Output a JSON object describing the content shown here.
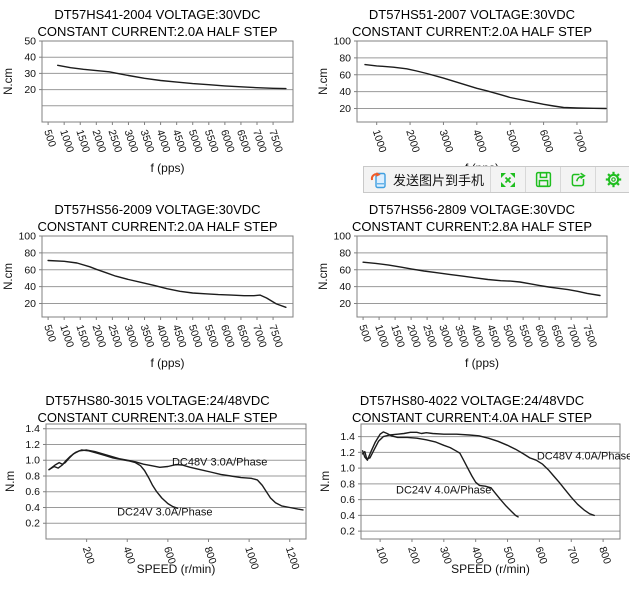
{
  "page": {
    "background": "#ffffff"
  },
  "toolbar": {
    "send_label": "发送图片到手机",
    "buttons": [
      {
        "name": "send-to-phone",
        "icon": "phone-with-arrow"
      },
      {
        "name": "fullscreen",
        "icon": "expand-arrows"
      },
      {
        "name": "save",
        "icon": "floppy-disk"
      },
      {
        "name": "share",
        "icon": "share-arrow"
      },
      {
        "name": "settings",
        "icon": "gear"
      }
    ],
    "icon_color": "#1fbe1f",
    "phone_blue": "#3f9fe0",
    "phone_fill": "#dcefff",
    "arrow_red": "#f05a28",
    "background": "#f3f3f3",
    "border": "#c9c9c9"
  },
  "chart_defaults": {
    "curve_color": "#1c1c1c",
    "grid_color": "#9a9a9a",
    "border_color": "#808080",
    "text_color": "#111111"
  },
  "chart_data": [
    {
      "type": "line",
      "title_line1": "DT57HS41-2004 VOLTAGE:30VDC",
      "title_line2": "CONSTANT CURRENT:2.0A HALF STEP",
      "xlabel": "f (pps)",
      "ylabel": "N.cm",
      "xticks": [
        "500",
        "1000",
        "1500",
        "2000",
        "2500",
        "3000",
        "3500",
        "4000",
        "4500",
        "5000",
        "5500",
        "6000",
        "6500",
        "7000",
        "7500"
      ],
      "yticks": [
        "20",
        "30",
        "40",
        "50"
      ],
      "extra_gridlines": [
        10
      ],
      "xlim": [
        310,
        8120
      ],
      "ylim": [
        0,
        50
      ],
      "series": [
        {
          "name": "torque",
          "points": [
            [
              800,
              35
            ],
            [
              1200,
              33.5
            ],
            [
              1600,
              32.5
            ],
            [
              2000,
              31.7
            ],
            [
              2400,
              31
            ],
            [
              2700,
              29.8
            ],
            [
              3000,
              28.7
            ],
            [
              3500,
              27
            ],
            [
              4000,
              25.6
            ],
            [
              4500,
              24.6
            ],
            [
              5000,
              23.7
            ],
            [
              5500,
              23
            ],
            [
              6000,
              22.3
            ],
            [
              6500,
              21.7
            ],
            [
              7000,
              21.2
            ],
            [
              7500,
              20.8
            ],
            [
              7900,
              20.6
            ]
          ]
        }
      ],
      "annotations": []
    },
    {
      "type": "line",
      "title_line1": "DT57HS51-2007 VOLTAGE:30VDC",
      "title_line2": "CONSTANT CURRENT:2.0A HALF STEP",
      "xlabel": "f (pps)",
      "ylabel": "N.cm",
      "xticks": [
        "1000",
        "2000",
        "3000",
        "4000",
        "5000",
        "6000",
        "7000"
      ],
      "yticks": [
        "20",
        "40",
        "60",
        "80",
        "100"
      ],
      "extra_gridlines": [],
      "xlim": [
        410,
        7900
      ],
      "ylim": [
        4,
        100
      ],
      "series": [
        {
          "name": "torque",
          "points": [
            [
              650,
              72
            ],
            [
              1000,
              70.5
            ],
            [
              1500,
              69
            ],
            [
              1900,
              67
            ],
            [
              2200,
              64.5
            ],
            [
              2500,
              61.5
            ],
            [
              3000,
              56
            ],
            [
              3500,
              50
            ],
            [
              4000,
              44
            ],
            [
              4300,
              41
            ],
            [
              4700,
              36.5
            ],
            [
              5000,
              33
            ],
            [
              5500,
              29
            ],
            [
              6000,
              25
            ],
            [
              6300,
              23
            ],
            [
              6600,
              21.2
            ],
            [
              7000,
              20.6
            ],
            [
              7500,
              20.2
            ],
            [
              7870,
              20
            ]
          ]
        }
      ],
      "annotations": []
    },
    {
      "type": "line",
      "title_line1": "DT57HS56-2009 VOLTAGE:30VDC",
      "title_line2": "CONSTANT CURRENT:2.0A HALF STEP",
      "xlabel": "f (pps)",
      "ylabel": "N.cm",
      "xticks": [
        "500",
        "1000",
        "1500",
        "2000",
        "2500",
        "3000",
        "3500",
        "4000",
        "4500",
        "5000",
        "5500",
        "6000",
        "6500",
        "7000",
        "7500"
      ],
      "yticks": [
        "20",
        "40",
        "60",
        "80",
        "100"
      ],
      "extra_gridlines": [],
      "xlim": [
        310,
        8120
      ],
      "ylim": [
        4,
        100
      ],
      "series": [
        {
          "name": "torque",
          "points": [
            [
              500,
              71
            ],
            [
              1000,
              70
            ],
            [
              1400,
              68
            ],
            [
              1800,
              63.5
            ],
            [
              2000,
              60.5
            ],
            [
              2300,
              56.5
            ],
            [
              2600,
              52.5
            ],
            [
              3000,
              48.5
            ],
            [
              3400,
              45
            ],
            [
              3800,
              41.5
            ],
            [
              4200,
              37.5
            ],
            [
              4600,
              34.5
            ],
            [
              5000,
              32.5
            ],
            [
              5400,
              31.5
            ],
            [
              5800,
              30.5
            ],
            [
              6200,
              30
            ],
            [
              6600,
              29.3
            ],
            [
              6900,
              29.3
            ],
            [
              7100,
              30
            ],
            [
              7300,
              26.5
            ],
            [
              7600,
              19.5
            ],
            [
              7900,
              15.5
            ]
          ]
        }
      ],
      "annotations": []
    },
    {
      "type": "line",
      "title_line1": "DT57HS56-2809 VOLTAGE:30VDC",
      "title_line2": "CONSTANT CURRENT:2.8A HALF STEP",
      "xlabel": "f (pps)",
      "ylabel": "N.cm",
      "xticks": [
        "500",
        "1000",
        "1500",
        "2000",
        "2500",
        "3000",
        "3500",
        "4000",
        "4500",
        "5000",
        "5500",
        "6000",
        "6500",
        "7000",
        "7500"
      ],
      "yticks": [
        "20",
        "40",
        "60",
        "80",
        "100"
      ],
      "extra_gridlines": [],
      "xlim": [
        310,
        8120
      ],
      "ylim": [
        4,
        100
      ],
      "series": [
        {
          "name": "torque",
          "points": [
            [
              500,
              69
            ],
            [
              900,
              67.5
            ],
            [
              1300,
              65.5
            ],
            [
              1700,
              63
            ],
            [
              2000,
              61
            ],
            [
              2400,
              58.5
            ],
            [
              2800,
              56.5
            ],
            [
              3200,
              54.5
            ],
            [
              3600,
              52.5
            ],
            [
              4000,
              50.5
            ],
            [
              4400,
              48.5
            ],
            [
              4800,
              47
            ],
            [
              5100,
              46.5
            ],
            [
              5400,
              45.5
            ],
            [
              5700,
              43.5
            ],
            [
              6000,
              41.5
            ],
            [
              6300,
              39.5
            ],
            [
              6600,
              38
            ],
            [
              6900,
              36.5
            ],
            [
              7200,
              34.5
            ],
            [
              7500,
              32
            ],
            [
              7900,
              29.5
            ]
          ]
        }
      ],
      "annotations": []
    },
    {
      "type": "line",
      "title_line1": "DT57HS80-3015 VOLTAGE:24/48VDC",
      "title_line2": "CONSTANT CURRENT:3.0A HALF STEP",
      "xlabel": "SPEED  (r/min)",
      "ylabel": "N.m",
      "xticks": [
        "200",
        "400",
        "600",
        "800",
        "1000",
        "1200"
      ],
      "yticks": [
        "0.2",
        "0.4",
        "0.6",
        "0.8",
        "1.0",
        "1.2",
        "1.4"
      ],
      "extra_gridlines": [],
      "xlim": [
        0,
        1280
      ],
      "ylim": [
        0,
        1.46
      ],
      "series": [
        {
          "name": "DC48V 3.0A/Phase",
          "points": [
            [
              15,
              0.88
            ],
            [
              45,
              0.94
            ],
            [
              65,
              0.97
            ],
            [
              80,
              0.95
            ],
            [
              95,
              0.97
            ],
            [
              115,
              1.03
            ],
            [
              135,
              1.08
            ],
            [
              165,
              1.12
            ],
            [
              200,
              1.13
            ],
            [
              240,
              1.11
            ],
            [
              280,
              1.08
            ],
            [
              320,
              1.05
            ],
            [
              360,
              1.02
            ],
            [
              400,
              1.0
            ],
            [
              440,
              0.98
            ],
            [
              480,
              0.95
            ],
            [
              520,
              0.93
            ],
            [
              560,
              0.91
            ],
            [
              600,
              0.92
            ],
            [
              640,
              0.945
            ],
            [
              670,
              0.94
            ],
            [
              710,
              0.91
            ],
            [
              760,
              0.88
            ],
            [
              810,
              0.85
            ],
            [
              860,
              0.82
            ],
            [
              910,
              0.8
            ],
            [
              960,
              0.78
            ],
            [
              1010,
              0.77
            ],
            [
              1040,
              0.75
            ],
            [
              1065,
              0.68
            ],
            [
              1085,
              0.6
            ],
            [
              1105,
              0.52
            ],
            [
              1130,
              0.46
            ],
            [
              1160,
              0.42
            ],
            [
              1200,
              0.4
            ],
            [
              1240,
              0.38
            ],
            [
              1265,
              0.37
            ]
          ]
        },
        {
          "name": "DC24V 3.0A/Phase",
          "points": [
            [
              15,
              0.88
            ],
            [
              40,
              0.92
            ],
            [
              60,
              0.9
            ],
            [
              80,
              0.94
            ],
            [
              100,
              1.0
            ],
            [
              120,
              1.05
            ],
            [
              145,
              1.1
            ],
            [
              175,
              1.13
            ],
            [
              210,
              1.12
            ],
            [
              250,
              1.09
            ],
            [
              290,
              1.06
            ],
            [
              330,
              1.03
            ],
            [
              370,
              1.01
            ],
            [
              410,
              0.99
            ],
            [
              440,
              0.97
            ],
            [
              465,
              0.93
            ],
            [
              485,
              0.87
            ],
            [
              505,
              0.78
            ],
            [
              525,
              0.68
            ],
            [
              545,
              0.6
            ],
            [
              570,
              0.52
            ],
            [
              600,
              0.45
            ],
            [
              625,
              0.41
            ],
            [
              648,
              0.39
            ]
          ]
        }
      ],
      "annotations": [
        {
          "text": "DC48V 3.0A/Phase",
          "x": 620,
          "y": 0.93
        },
        {
          "text": "DC24V 3.0A/Phase",
          "x": 350,
          "y": 0.3
        }
      ]
    },
    {
      "type": "line",
      "title_line1": "DT57HS80-4022 VOLTAGE:24/48VDC",
      "title_line2": "CONSTANT CURRENT:4.0A HALF STEP",
      "xlabel": "SPEED (r/min)",
      "ylabel": "N.m",
      "xticks": [
        "100",
        "200",
        "300",
        "400",
        "500",
        "600",
        "700",
        "800"
      ],
      "yticks": [
        "0.2",
        "0.4",
        "0.6",
        "0.8",
        "1.0",
        "1.2",
        "1.4"
      ],
      "extra_gridlines": [],
      "xlim": [
        40,
        853
      ],
      "ylim": [
        0.1,
        1.56
      ],
      "series": [
        {
          "name": "DC48V 4.0A/Phase",
          "points": [
            [
              45,
              1.18
            ],
            [
              52,
              1.21
            ],
            [
              58,
              1.12
            ],
            [
              68,
              1.13
            ],
            [
              82,
              1.24
            ],
            [
              95,
              1.34
            ],
            [
              110,
              1.4
            ],
            [
              130,
              1.42
            ],
            [
              155,
              1.43
            ],
            [
              175,
              1.44
            ],
            [
              195,
              1.455
            ],
            [
              215,
              1.455
            ],
            [
              230,
              1.44
            ],
            [
              245,
              1.45
            ],
            [
              265,
              1.44
            ],
            [
              300,
              1.43
            ],
            [
              340,
              1.43
            ],
            [
              380,
              1.42
            ],
            [
              410,
              1.41
            ],
            [
              440,
              1.38
            ],
            [
              470,
              1.34
            ],
            [
              500,
              1.29
            ],
            [
              525,
              1.24
            ],
            [
              550,
              1.18
            ],
            [
              570,
              1.13
            ],
            [
              590,
              1.1
            ],
            [
              610,
              1.05
            ],
            [
              628,
              0.98
            ],
            [
              645,
              0.9
            ],
            [
              662,
              0.82
            ],
            [
              680,
              0.73
            ],
            [
              700,
              0.63
            ],
            [
              720,
              0.54
            ],
            [
              740,
              0.47
            ],
            [
              758,
              0.42
            ],
            [
              772,
              0.4
            ]
          ]
        },
        {
          "name": "DC24V 4.0A/Phase",
          "points": [
            [
              45,
              1.22
            ],
            [
              52,
              1.14
            ],
            [
              60,
              1.1
            ],
            [
              70,
              1.2
            ],
            [
              85,
              1.33
            ],
            [
              100,
              1.43
            ],
            [
              110,
              1.46
            ],
            [
              122,
              1.44
            ],
            [
              135,
              1.41
            ],
            [
              155,
              1.39
            ],
            [
              185,
              1.39
            ],
            [
              215,
              1.38
            ],
            [
              245,
              1.36
            ],
            [
              275,
              1.33
            ],
            [
              300,
              1.29
            ],
            [
              320,
              1.26
            ],
            [
              338,
              1.22
            ],
            [
              350,
              1.19
            ],
            [
              362,
              1.1
            ],
            [
              375,
              1.0
            ],
            [
              388,
              0.9
            ],
            [
              400,
              0.82
            ],
            [
              412,
              0.78
            ],
            [
              430,
              0.77
            ],
            [
              448,
              0.75
            ],
            [
              462,
              0.68
            ],
            [
              478,
              0.6
            ],
            [
              495,
              0.52
            ],
            [
              512,
              0.45
            ],
            [
              525,
              0.4
            ],
            [
              533,
              0.38
            ]
          ]
        }
      ],
      "annotations": [
        {
          "text": "DC48V 4.0A/Phase",
          "x": 592,
          "y": 1.11
        },
        {
          "text": "DC24V 4.0A/Phase",
          "x": 150,
          "y": 0.68
        }
      ]
    }
  ]
}
